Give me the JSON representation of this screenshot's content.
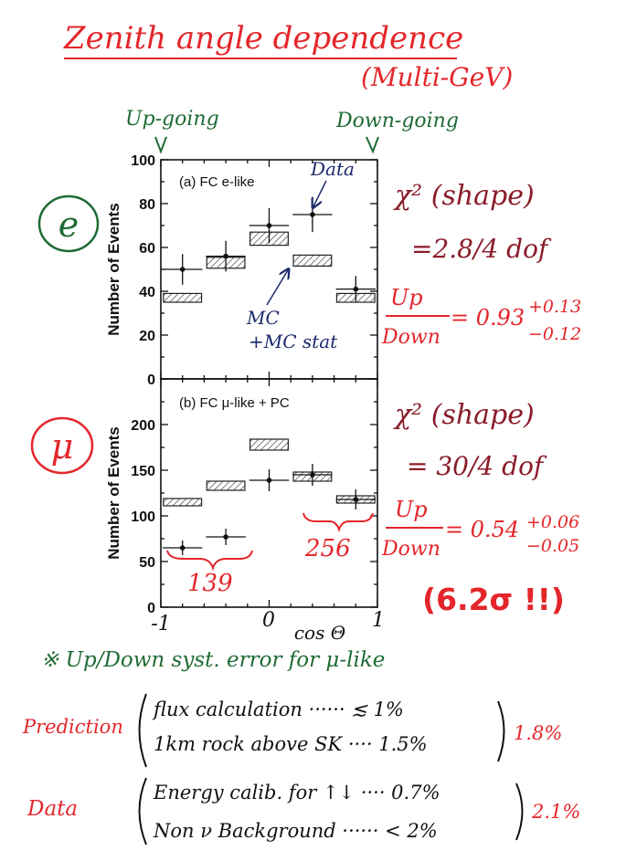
{
  "header": {
    "title": "Zenith angle dependence",
    "subtitle": "(Multi-GeV)",
    "up_label": "Up-going",
    "down_label": "Down-going"
  },
  "colors": {
    "red_ink": "#e4262b",
    "green_ink": "#1f6b35",
    "navy_ink": "#1d2a6b",
    "maroon_ink": "#8a1c2a"
  },
  "chart_data": [
    {
      "type": "bar",
      "panel_label": "(a) FC e-like",
      "flavor_symbol": "e",
      "xlabel": "cos Θ",
      "ylabel": "Number of Events",
      "xlim": [
        -1,
        1
      ],
      "ylim": [
        0,
        100
      ],
      "y_ticks": [
        "0",
        "20",
        "40",
        "60",
        "80",
        "100"
      ],
      "x_bins": [
        -1.0,
        -0.6,
        -0.2,
        0.2,
        0.6,
        1.0
      ],
      "series": [
        {
          "name": "Data",
          "values": [
            50,
            56,
            70,
            75,
            41
          ],
          "errors": [
            7,
            7,
            8,
            8,
            6
          ]
        },
        {
          "name": "MC +MC stat",
          "values": [
            37,
            53,
            64,
            54,
            37
          ],
          "band_halfwidth": [
            2,
            2.5,
            3,
            2.5,
            2
          ]
        }
      ],
      "annotations": {
        "data_label": "Data",
        "mc_label_1": "MC",
        "mc_label_2": "+MC stat",
        "chi2": "χ² (shape)",
        "chi2_value": "=2.8/4 dof",
        "ud_num": "Up",
        "ud_den": "Down",
        "ud_value": "= 0.93",
        "ud_err_plus": "+0.13",
        "ud_err_minus": "−0.12"
      }
    },
    {
      "type": "bar",
      "panel_label": "(b) FC μ-like + PC",
      "flavor_symbol": "μ",
      "xlabel": "cos Θ",
      "ylabel": "Number of Events",
      "xlim": [
        -1,
        1
      ],
      "ylim": [
        0,
        250
      ],
      "y_ticks": [
        "0",
        "50",
        "100",
        "150",
        "200"
      ],
      "x_tick_labels": [
        "-1",
        "0",
        "1"
      ],
      "x_bins": [
        -1.0,
        -0.6,
        -0.2,
        0.2,
        0.6,
        1.0
      ],
      "series": [
        {
          "name": "Data",
          "values": [
            65,
            77,
            139,
            145,
            118
          ],
          "errors": [
            8,
            9,
            12,
            12,
            11
          ]
        },
        {
          "name": "MC +MC stat",
          "values": [
            115,
            133,
            178,
            143,
            118
          ],
          "band_halfwidth": [
            4,
            5,
            6,
            5,
            4
          ]
        }
      ],
      "annotations": {
        "count_up": "139",
        "count_down": "256",
        "chi2": "χ² (shape)",
        "chi2_value": "= 30/4 dof",
        "ud_num": "Up",
        "ud_den": "Down",
        "ud_value": "= 0.54",
        "ud_err_plus": "+0.06",
        "ud_err_minus": "−0.05",
        "significance": "(6.2σ !!)"
      }
    }
  ],
  "notes": {
    "syst_title": "※ Up/Down syst. error for μ-like",
    "prediction_label": "Prediction",
    "prediction_items": [
      "flux calculation ······ ≲ 1%",
      "1km rock above SK ···· 1.5%"
    ],
    "prediction_total": "1.8%",
    "data_label": "Data",
    "data_items": [
      "Energy calib. for ↑↓ ···· 0.7%",
      "Non ν Background ······ < 2%"
    ],
    "data_total": "2.1%"
  }
}
